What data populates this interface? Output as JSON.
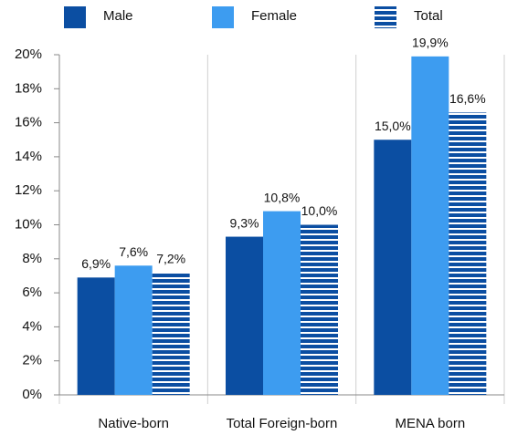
{
  "chart_data": {
    "type": "bar",
    "categories": [
      "Native-born",
      "Total Foreign-born",
      "MENA born"
    ],
    "series": [
      {
        "name": "Male",
        "color": "#0b4ea2",
        "values": [
          6.9,
          9.3,
          15.0
        ],
        "value_labels": [
          "6,9%",
          "9,3%",
          "15,0%"
        ]
      },
      {
        "name": "Female",
        "color": "#3d9cf0",
        "values": [
          7.6,
          10.8,
          19.9
        ],
        "value_labels": [
          "7,6%",
          "10,8%",
          "19,9%"
        ]
      },
      {
        "name": "Total",
        "color": "#0b4ea2",
        "hatch": "horizontal",
        "values": [
          7.2,
          10.0,
          16.6
        ],
        "value_labels": [
          "7,2%",
          "10,0%",
          "16,6%"
        ]
      }
    ],
    "ylim": [
      0,
      20
    ],
    "yticks": [
      {
        "value": 0,
        "label": "0%"
      },
      {
        "value": 2,
        "label": "2%"
      },
      {
        "value": 4,
        "label": "4%"
      },
      {
        "value": 6,
        "label": "6%"
      },
      {
        "value": 8,
        "label": "8%"
      },
      {
        "value": 10,
        "label": "10%"
      },
      {
        "value": 12,
        "label": "12%"
      },
      {
        "value": 14,
        "label": "14%"
      },
      {
        "value": 16,
        "label": "16%"
      },
      {
        "value": 18,
        "label": "18%"
      },
      {
        "value": 20,
        "label": "20%"
      }
    ],
    "grid": false
  }
}
